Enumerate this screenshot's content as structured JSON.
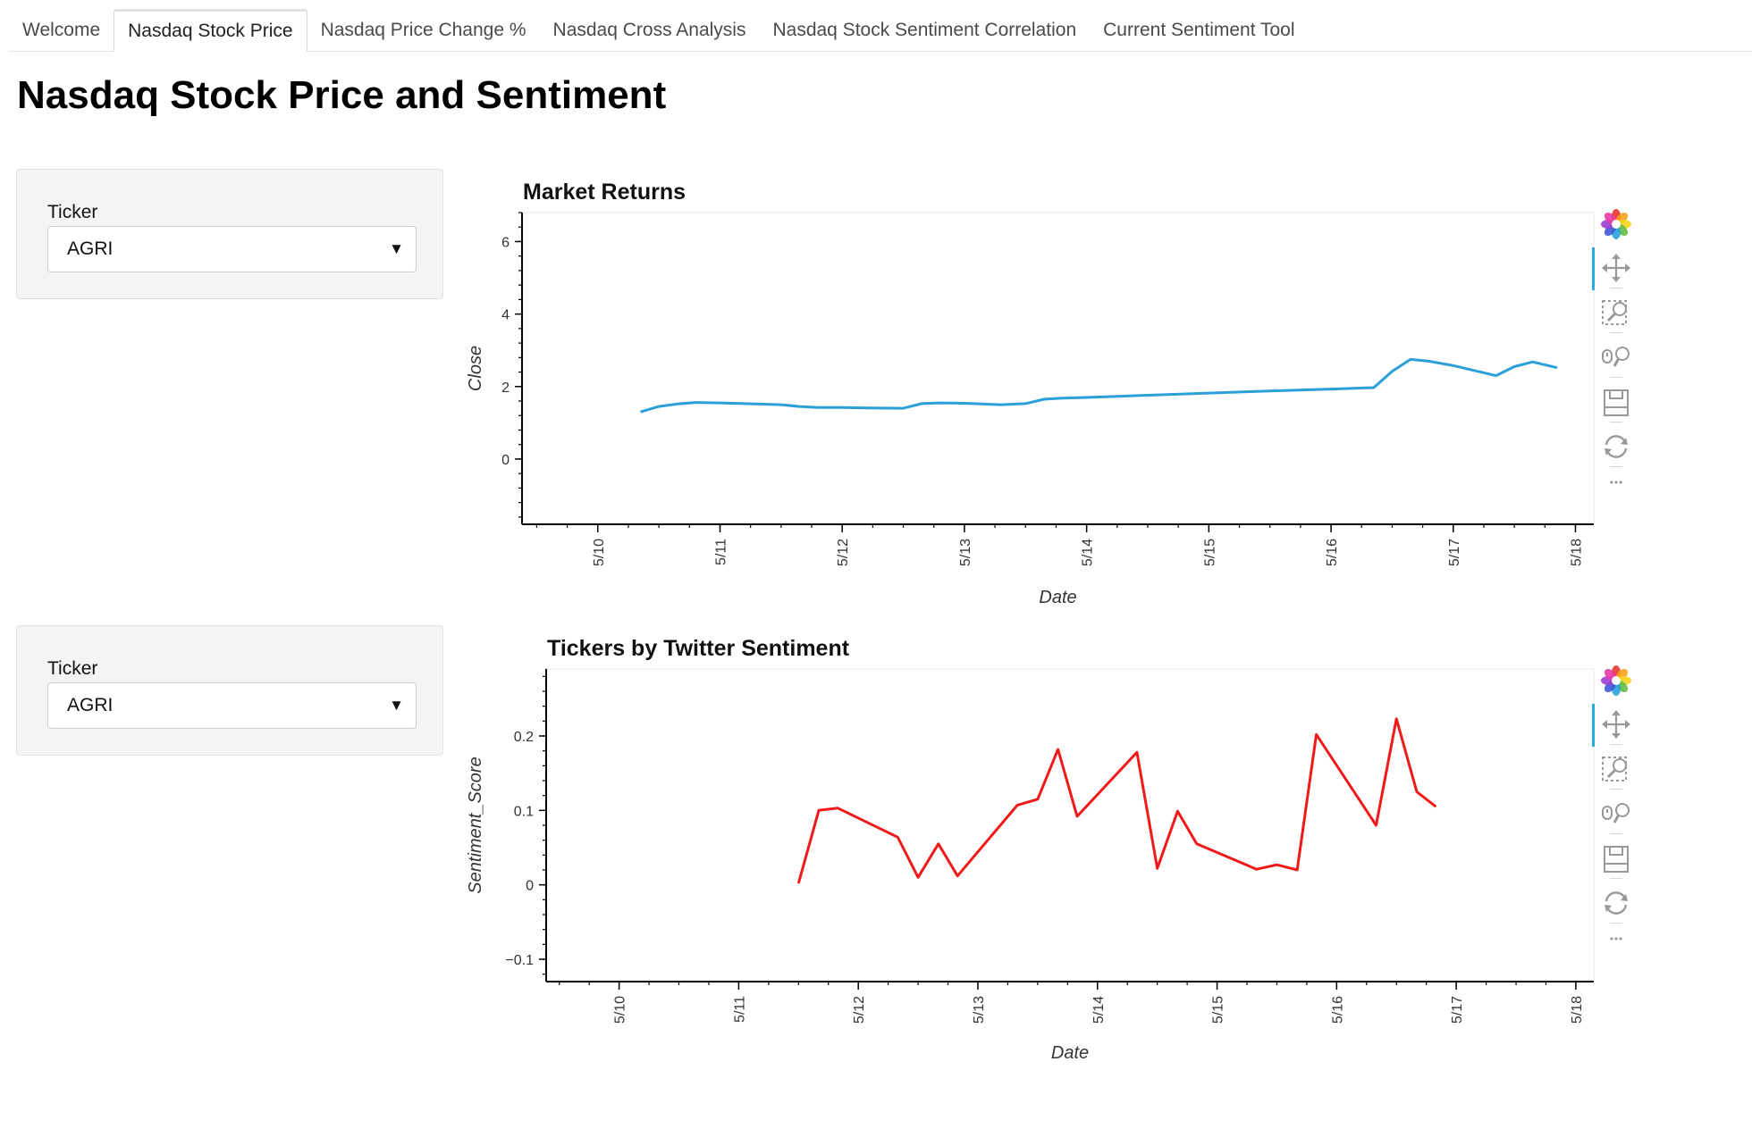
{
  "tabs": [
    {
      "label": "Welcome",
      "active": false
    },
    {
      "label": "Nasdaq Stock Price",
      "active": true
    },
    {
      "label": "Nasdaq Price Change %",
      "active": false
    },
    {
      "label": "Nasdaq Cross Analysis",
      "active": false
    },
    {
      "label": "Nasdaq Stock Sentiment Correlation",
      "active": false
    },
    {
      "label": "Current Sentiment Tool",
      "active": false
    }
  ],
  "page_title": "Nasdaq Stock Price and Sentiment",
  "widgets": [
    {
      "label": "Ticker",
      "value": "AGRI"
    },
    {
      "label": "Ticker",
      "value": "AGRI"
    }
  ],
  "toolbar_icons": [
    "bokeh-logo-icon",
    "pan-icon",
    "box-zoom-icon",
    "wheel-zoom-icon",
    "save-icon",
    "reset-icon",
    "more-icon"
  ],
  "chart_data": [
    {
      "type": "line",
      "title": "Market Returns",
      "xlabel": "Date",
      "ylabel": "Close",
      "x_ticks": [
        "5/10",
        "5/11",
        "5/12",
        "5/13",
        "5/14",
        "5/15",
        "5/16",
        "5/17",
        "5/18"
      ],
      "y_ticks": [
        "0",
        "2",
        "4",
        "6"
      ],
      "ylim": [
        -1.8,
        6.8
      ],
      "xlim": [
        9.38,
        18.15
      ],
      "line_color": "#2a9fd8",
      "series": [
        {
          "x": [
            10.35,
            10.5,
            10.65,
            10.8,
            11.0,
            11.2,
            11.5,
            11.65,
            11.8,
            12.0,
            12.2,
            12.5,
            12.65,
            12.8,
            13.0,
            13.3,
            13.5,
            13.65,
            13.8,
            14.0,
            14.5,
            15.0,
            15.5,
            16.0,
            16.35,
            16.5,
            16.65,
            16.8,
            17.0,
            17.35,
            17.5,
            17.65,
            17.85
          ],
          "y": [
            1.3,
            1.45,
            1.52,
            1.56,
            1.55,
            1.53,
            1.5,
            1.45,
            1.42,
            1.42,
            1.41,
            1.4,
            1.53,
            1.55,
            1.54,
            1.5,
            1.53,
            1.65,
            1.68,
            1.7,
            1.76,
            1.82,
            1.88,
            1.93,
            1.97,
            2.42,
            2.75,
            2.7,
            2.58,
            2.3,
            2.55,
            2.68,
            2.52
          ]
        }
      ]
    },
    {
      "type": "line",
      "title": "Tickers by Twitter Sentiment",
      "xlabel": "Date",
      "ylabel": "Sentiment_Score",
      "x_ticks": [
        "5/10",
        "5/11",
        "5/12",
        "5/13",
        "5/14",
        "5/15",
        "5/16",
        "5/17",
        "5/18"
      ],
      "y_ticks": [
        "−0.1",
        "0",
        "0.1",
        "0.2"
      ],
      "ylim": [
        -0.13,
        0.29
      ],
      "xlim": [
        9.39,
        18.15
      ],
      "line_color": "#f01a1a",
      "series": [
        {
          "x": [
            11.5,
            11.67,
            11.83,
            12.33,
            12.5,
            12.67,
            12.83,
            13.33,
            13.5,
            13.67,
            13.83,
            14.33,
            14.5,
            14.67,
            14.83,
            15.33,
            15.5,
            15.67,
            15.83,
            16.33,
            16.5,
            16.67,
            16.83
          ],
          "y": [
            0.002,
            0.1,
            0.103,
            0.064,
            0.01,
            0.055,
            0.012,
            0.107,
            0.115,
            0.182,
            0.092,
            0.178,
            0.022,
            0.099,
            0.055,
            0.021,
            0.027,
            0.02,
            0.202,
            0.08,
            0.223,
            0.125,
            0.105
          ]
        }
      ]
    }
  ]
}
